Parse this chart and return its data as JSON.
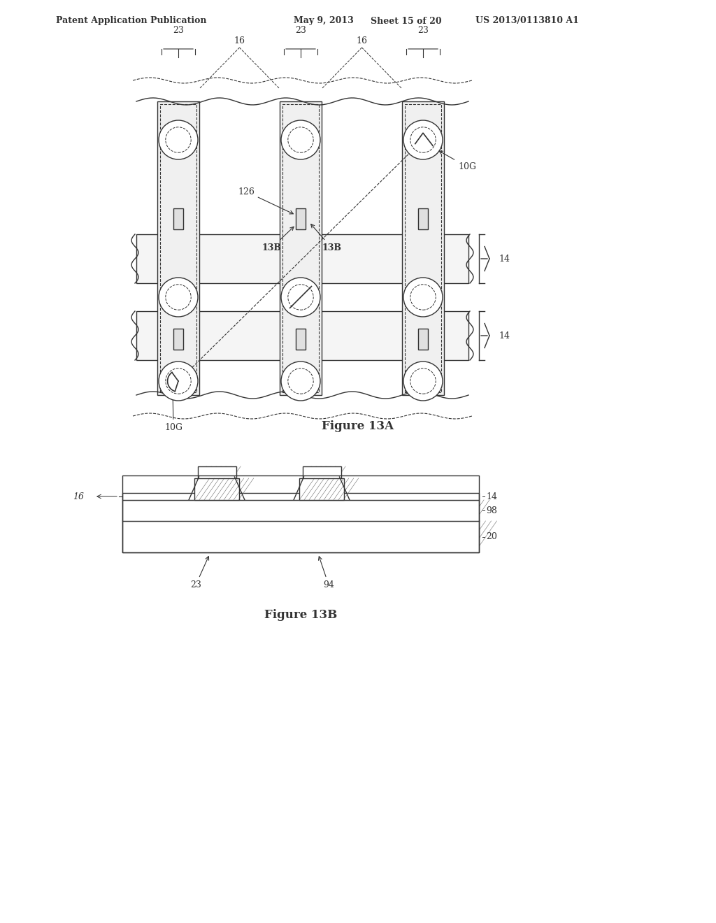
{
  "bg_color": "#ffffff",
  "line_color": "#333333",
  "header_text": "Patent Application Publication",
  "header_date": "May 9, 2013",
  "header_sheet": "Sheet 15 of 20",
  "header_patent": "US 2013/0113810 A1",
  "fig13a_caption": "Figure 13A",
  "fig13b_caption": "Figure 13B",
  "hatch_pattern": "////",
  "label_fontsize": 9,
  "caption_fontsize": 12,
  "header_fontsize": 9
}
